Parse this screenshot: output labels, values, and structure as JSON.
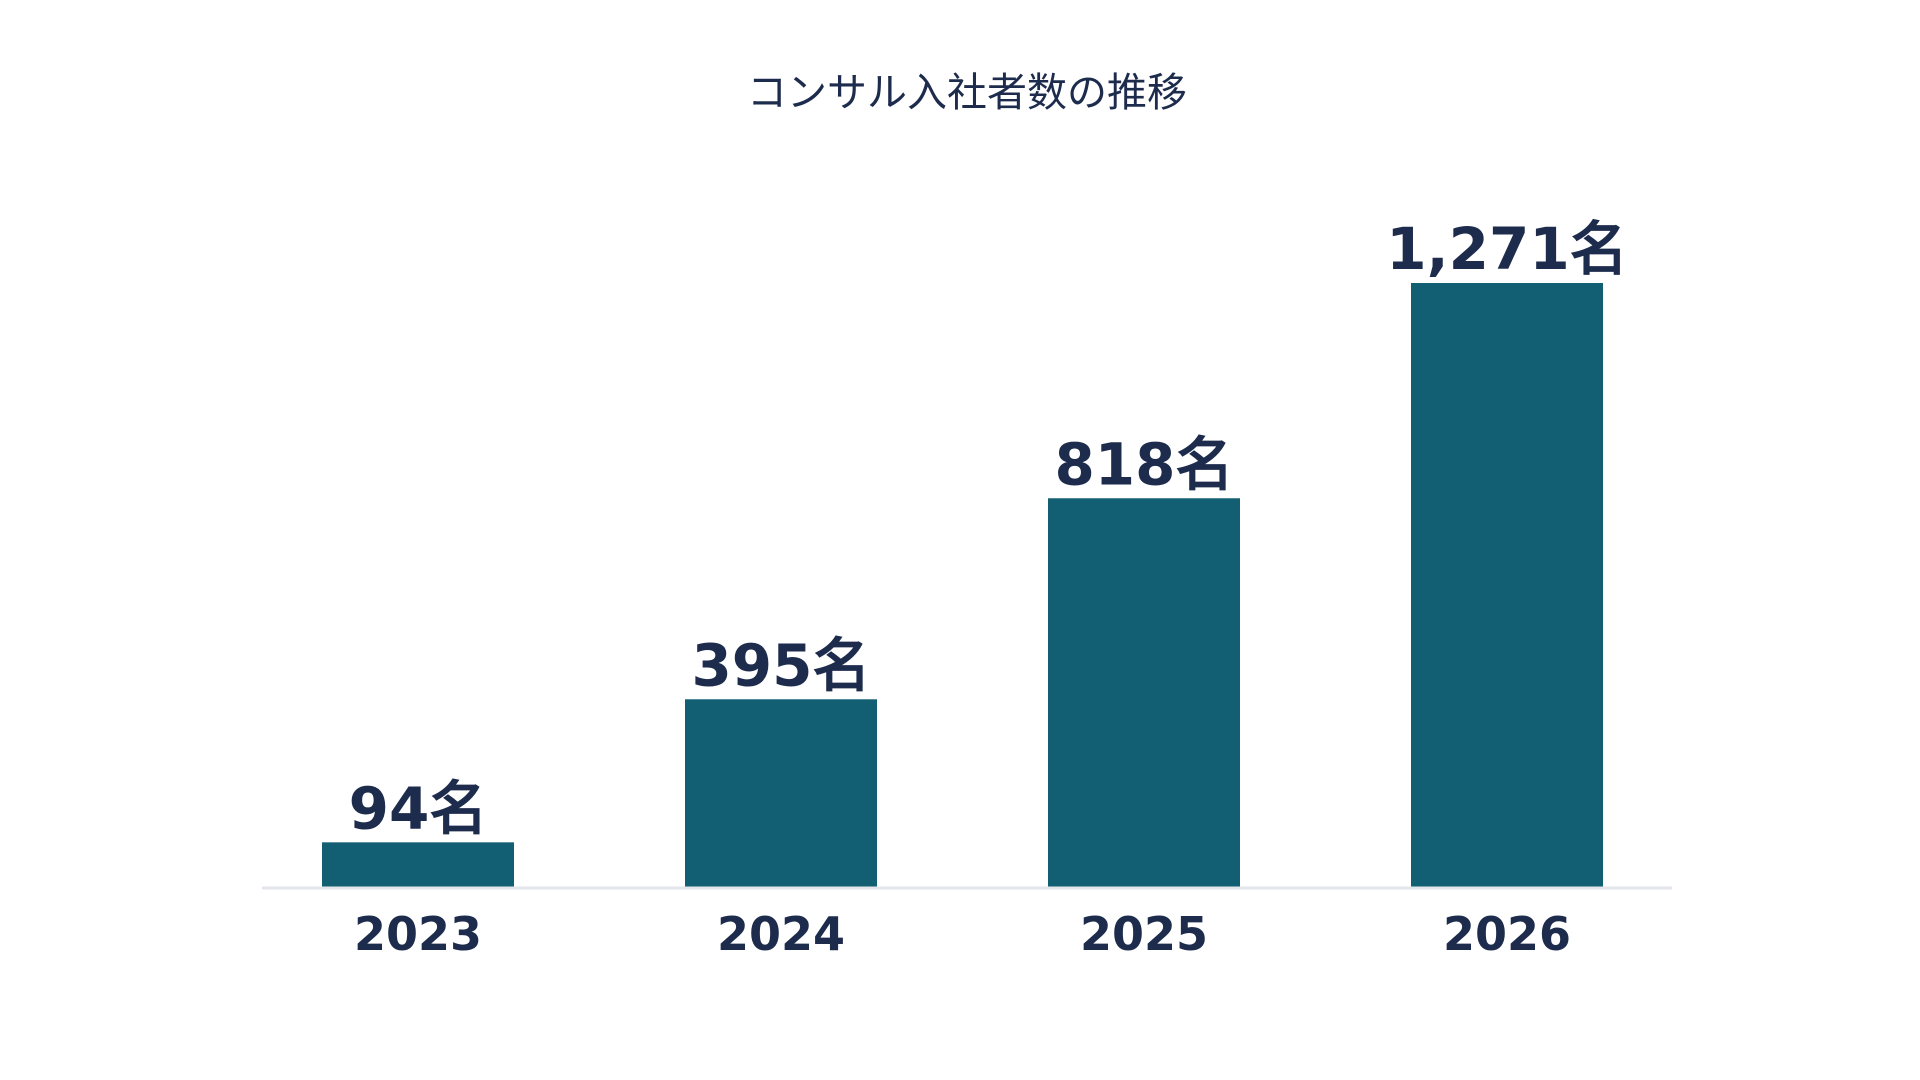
{
  "chart_data": {
    "type": "bar",
    "title": "コンサル入社者数の推移",
    "categories": [
      "2023",
      "2024",
      "2025",
      "2026"
    ],
    "values": [
      94,
      395,
      818,
      1271
    ],
    "data_labels": [
      "94名",
      "395名",
      "818名",
      "1,271名"
    ],
    "unit": "名",
    "xlabel": "",
    "ylabel": "",
    "ylim": [
      0,
      1271
    ],
    "grid": false,
    "legend": "none",
    "colors": {
      "bar": "#125e73",
      "text": "#1d2b4c",
      "baseline": "#e3e6eb",
      "background": "#ffffff"
    }
  }
}
